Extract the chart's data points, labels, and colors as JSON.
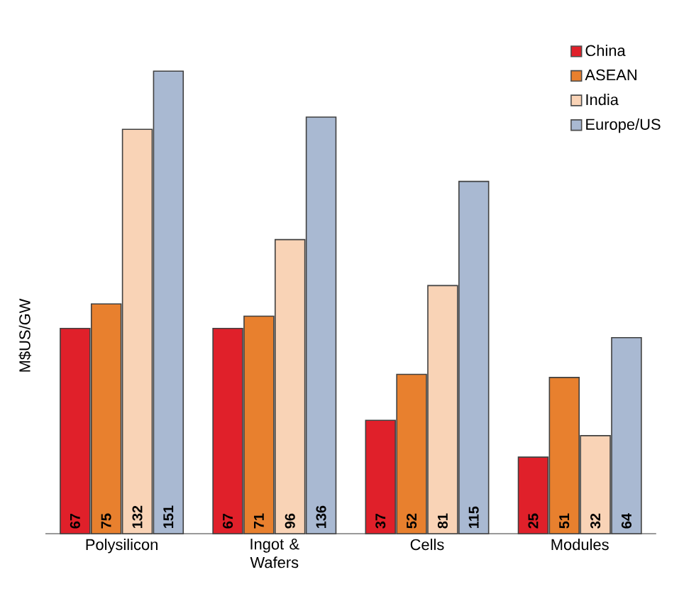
{
  "chart_data": {
    "type": "bar",
    "ylabel": "M$US/GW",
    "categories": [
      "Polysilicon",
      "Ingot & Wafers",
      "Cells",
      "Modules"
    ],
    "series": [
      {
        "name": "China",
        "color": "#e0202a",
        "values": [
          67,
          67,
          37,
          25
        ]
      },
      {
        "name": "ASEAN",
        "color": "#e8802e",
        "values": [
          75,
          71,
          52,
          51
        ]
      },
      {
        "name": "India",
        "color": "#f9d3b6",
        "values": [
          132,
          96,
          81,
          32
        ]
      },
      {
        "name": "Europe/US",
        "color": "#a9b9d2",
        "values": [
          151,
          136,
          115,
          64
        ]
      }
    ],
    "data_labels": true,
    "legend": "top right"
  }
}
